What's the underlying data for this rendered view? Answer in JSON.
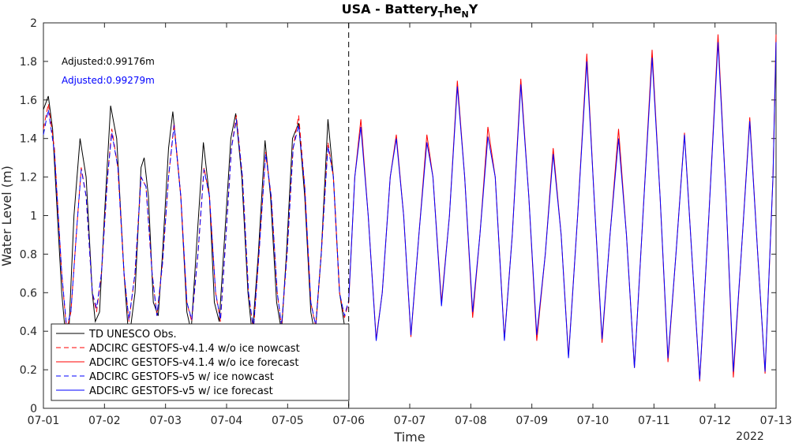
{
  "chart_data": {
    "type": "line",
    "title": "USA - Battery",
    "title_sub": "T",
    "title_mid": "he",
    "title_sub2": "N",
    "title_end": "Y",
    "xlabel": "Time",
    "ylabel": "Water Level (m)",
    "year_label": "2022",
    "ylim": [
      0,
      2
    ],
    "xlim": [
      0,
      12
    ],
    "x_ticks": [
      "07-01",
      "07-02",
      "07-03",
      "07-04",
      "07-05",
      "07-06",
      "07-07",
      "07-08",
      "07-09",
      "07-10",
      "07-11",
      "07-12",
      "07-13"
    ],
    "y_ticks": [
      "0",
      "0.2",
      "0.4",
      "0.6",
      "0.8",
      "1",
      "1.2",
      "1.4",
      "1.6",
      "1.8",
      "2"
    ],
    "nowcast_end": 5,
    "annotations": [
      {
        "text": "Adjusted:0.99176m",
        "color": "#000000"
      },
      {
        "text": "Adjusted:0.99279m",
        "color": "#0000ff"
      }
    ],
    "legend_position": "bottom-left",
    "series": [
      {
        "name": "TD UNESCO Obs.",
        "color": "#000000",
        "style": "solid",
        "points": [
          [
            0,
            1.55
          ],
          [
            0.08,
            1.62
          ],
          [
            0.15,
            1.45
          ],
          [
            0.3,
            0.6
          ],
          [
            0.37,
            0.35
          ],
          [
            0.42,
            0.42
          ],
          [
            0.5,
            1.0
          ],
          [
            0.6,
            1.4
          ],
          [
            0.7,
            1.2
          ],
          [
            0.8,
            0.6
          ],
          [
            0.85,
            0.45
          ],
          [
            0.92,
            0.5
          ],
          [
            1.0,
            1.0
          ],
          [
            1.1,
            1.57
          ],
          [
            1.2,
            1.4
          ],
          [
            1.32,
            0.7
          ],
          [
            1.4,
            0.35
          ],
          [
            1.5,
            0.6
          ],
          [
            1.6,
            1.25
          ],
          [
            1.65,
            1.3
          ],
          [
            1.72,
            1.1
          ],
          [
            1.8,
            0.55
          ],
          [
            1.88,
            0.48
          ],
          [
            1.95,
            0.8
          ],
          [
            2.05,
            1.35
          ],
          [
            2.12,
            1.54
          ],
          [
            2.25,
            1.1
          ],
          [
            2.35,
            0.5
          ],
          [
            2.42,
            0.4
          ],
          [
            2.52,
            0.9
          ],
          [
            2.62,
            1.38
          ],
          [
            2.72,
            1.1
          ],
          [
            2.8,
            0.55
          ],
          [
            2.88,
            0.45
          ],
          [
            2.97,
            0.9
          ],
          [
            3.07,
            1.4
          ],
          [
            3.15,
            1.53
          ],
          [
            3.25,
            1.2
          ],
          [
            3.35,
            0.6
          ],
          [
            3.42,
            0.38
          ],
          [
            3.52,
            0.8
          ],
          [
            3.63,
            1.39
          ],
          [
            3.72,
            1.1
          ],
          [
            3.82,
            0.55
          ],
          [
            3.9,
            0.4
          ],
          [
            3.98,
            0.8
          ],
          [
            4.08,
            1.4
          ],
          [
            4.18,
            1.48
          ],
          [
            4.28,
            1.1
          ],
          [
            4.38,
            0.5
          ],
          [
            4.45,
            0.38
          ],
          [
            4.55,
            0.8
          ],
          [
            4.66,
            1.5
          ],
          [
            4.75,
            1.2
          ],
          [
            4.85,
            0.6
          ],
          [
            4.93,
            0.43
          ],
          [
            5.0,
            0.44
          ]
        ]
      },
      {
        "name": "ADCIRC GESTOFS-v4.1.4 w/o ice nowcast",
        "color": "#ff0000",
        "style": "dashed",
        "points": [
          [
            0,
            1.45
          ],
          [
            0.08,
            1.58
          ],
          [
            0.18,
            1.35
          ],
          [
            0.3,
            0.7
          ],
          [
            0.38,
            0.4
          ],
          [
            0.45,
            0.5
          ],
          [
            0.55,
            0.95
          ],
          [
            0.62,
            1.25
          ],
          [
            0.7,
            1.1
          ],
          [
            0.8,
            0.6
          ],
          [
            0.87,
            0.5
          ],
          [
            0.95,
            0.7
          ],
          [
            1.05,
            1.2
          ],
          [
            1.12,
            1.45
          ],
          [
            1.22,
            1.25
          ],
          [
            1.32,
            0.7
          ],
          [
            1.4,
            0.45
          ],
          [
            1.5,
            0.7
          ],
          [
            1.6,
            1.2
          ],
          [
            1.68,
            1.15
          ],
          [
            1.78,
            0.7
          ],
          [
            1.86,
            0.48
          ],
          [
            1.95,
            0.75
          ],
          [
            2.05,
            1.2
          ],
          [
            2.14,
            1.48
          ],
          [
            2.25,
            1.1
          ],
          [
            2.35,
            0.55
          ],
          [
            2.43,
            0.45
          ],
          [
            2.53,
            0.8
          ],
          [
            2.63,
            1.25
          ],
          [
            2.72,
            1.1
          ],
          [
            2.82,
            0.6
          ],
          [
            2.9,
            0.45
          ],
          [
            2.98,
            0.85
          ],
          [
            3.08,
            1.35
          ],
          [
            3.16,
            1.52
          ],
          [
            3.26,
            1.2
          ],
          [
            3.36,
            0.6
          ],
          [
            3.44,
            0.4
          ],
          [
            3.53,
            0.8
          ],
          [
            3.64,
            1.33
          ],
          [
            3.73,
            1.1
          ],
          [
            3.83,
            0.6
          ],
          [
            3.9,
            0.42
          ],
          [
            3.99,
            0.8
          ],
          [
            4.09,
            1.35
          ],
          [
            4.18,
            1.52
          ],
          [
            4.28,
            1.15
          ],
          [
            4.38,
            0.55
          ],
          [
            4.46,
            0.42
          ],
          [
            4.55,
            0.8
          ],
          [
            4.66,
            1.38
          ],
          [
            4.75,
            1.2
          ],
          [
            4.85,
            0.6
          ],
          [
            4.93,
            0.47
          ],
          [
            5.0,
            0.55
          ]
        ]
      },
      {
        "name": "ADCIRC GESTOFS-v4.1.4 w/o ice forecast",
        "color": "#ff0000",
        "style": "solid",
        "points": [
          [
            5.0,
            0.55
          ],
          [
            5.1,
            1.2
          ],
          [
            5.2,
            1.5
          ],
          [
            5.32,
            1.0
          ],
          [
            5.45,
            0.36
          ],
          [
            5.55,
            0.6
          ],
          [
            5.68,
            1.2
          ],
          [
            5.78,
            1.42
          ],
          [
            5.9,
            1.0
          ],
          [
            6.02,
            0.37
          ],
          [
            6.15,
            0.9
          ],
          [
            6.28,
            1.42
          ],
          [
            6.38,
            1.2
          ],
          [
            6.52,
            0.55
          ],
          [
            6.65,
            1.0
          ],
          [
            6.78,
            1.7
          ],
          [
            6.9,
            1.2
          ],
          [
            7.03,
            0.47
          ],
          [
            7.15,
            0.9
          ],
          [
            7.28,
            1.46
          ],
          [
            7.4,
            1.2
          ],
          [
            7.55,
            0.36
          ],
          [
            7.68,
            0.9
          ],
          [
            7.82,
            1.71
          ],
          [
            7.95,
            1.1
          ],
          [
            8.08,
            0.35
          ],
          [
            8.22,
            0.8
          ],
          [
            8.35,
            1.35
          ],
          [
            8.48,
            0.9
          ],
          [
            8.6,
            0.27
          ],
          [
            8.75,
            1.0
          ],
          [
            8.9,
            1.84
          ],
          [
            9.02,
            1.1
          ],
          [
            9.15,
            0.34
          ],
          [
            9.28,
            0.9
          ],
          [
            9.42,
            1.45
          ],
          [
            9.55,
            0.9
          ],
          [
            9.68,
            0.21
          ],
          [
            9.82,
            1.0
          ],
          [
            9.97,
            1.86
          ],
          [
            10.1,
            1.1
          ],
          [
            10.23,
            0.24
          ],
          [
            10.36,
            0.8
          ],
          [
            10.5,
            1.43
          ],
          [
            10.62,
            0.8
          ],
          [
            10.75,
            0.14
          ],
          [
            10.9,
            1.0
          ],
          [
            11.05,
            1.94
          ],
          [
            11.18,
            1.1
          ],
          [
            11.3,
            0.16
          ],
          [
            11.43,
            0.8
          ],
          [
            11.57,
            1.51
          ],
          [
            11.7,
            0.8
          ],
          [
            11.82,
            0.18
          ],
          [
            11.95,
            1.2
          ],
          [
            12.0,
            1.94
          ]
        ]
      },
      {
        "name": "ADCIRC GESTOFS-v5 w/ ice nowcast",
        "color": "#0000ff",
        "style": "dashed",
        "points": [
          [
            0,
            1.42
          ],
          [
            0.08,
            1.55
          ],
          [
            0.18,
            1.33
          ],
          [
            0.3,
            0.7
          ],
          [
            0.38,
            0.42
          ],
          [
            0.45,
            0.5
          ],
          [
            0.55,
            0.95
          ],
          [
            0.62,
            1.24
          ],
          [
            0.7,
            1.1
          ],
          [
            0.8,
            0.6
          ],
          [
            0.87,
            0.52
          ],
          [
            0.95,
            0.7
          ],
          [
            1.05,
            1.2
          ],
          [
            1.12,
            1.43
          ],
          [
            1.22,
            1.25
          ],
          [
            1.32,
            0.7
          ],
          [
            1.4,
            0.46
          ],
          [
            1.5,
            0.7
          ],
          [
            1.6,
            1.2
          ],
          [
            1.68,
            1.15
          ],
          [
            1.78,
            0.7
          ],
          [
            1.86,
            0.48
          ],
          [
            1.95,
            0.75
          ],
          [
            2.05,
            1.2
          ],
          [
            2.14,
            1.47
          ],
          [
            2.25,
            1.1
          ],
          [
            2.35,
            0.55
          ],
          [
            2.43,
            0.46
          ],
          [
            2.53,
            0.8
          ],
          [
            2.63,
            1.24
          ],
          [
            2.72,
            1.1
          ],
          [
            2.82,
            0.6
          ],
          [
            2.9,
            0.46
          ],
          [
            2.98,
            0.85
          ],
          [
            3.08,
            1.35
          ],
          [
            3.16,
            1.5
          ],
          [
            3.26,
            1.2
          ],
          [
            3.36,
            0.6
          ],
          [
            3.44,
            0.41
          ],
          [
            3.53,
            0.8
          ],
          [
            3.64,
            1.32
          ],
          [
            3.73,
            1.1
          ],
          [
            3.83,
            0.6
          ],
          [
            3.9,
            0.43
          ],
          [
            3.99,
            0.8
          ],
          [
            4.09,
            1.35
          ],
          [
            4.18,
            1.47
          ],
          [
            4.28,
            1.15
          ],
          [
            4.38,
            0.55
          ],
          [
            4.46,
            0.43
          ],
          [
            4.55,
            0.8
          ],
          [
            4.66,
            1.36
          ],
          [
            4.75,
            1.2
          ],
          [
            4.85,
            0.6
          ],
          [
            4.93,
            0.48
          ],
          [
            5.0,
            0.56
          ]
        ]
      },
      {
        "name": "ADCIRC GESTOFS-v5 w/ ice forecast",
        "color": "#0000ff",
        "style": "solid",
        "points": [
          [
            5.0,
            0.56
          ],
          [
            5.1,
            1.2
          ],
          [
            5.2,
            1.46
          ],
          [
            5.32,
            1.0
          ],
          [
            5.45,
            0.35
          ],
          [
            5.55,
            0.6
          ],
          [
            5.68,
            1.2
          ],
          [
            5.78,
            1.4
          ],
          [
            5.9,
            1.0
          ],
          [
            6.02,
            0.38
          ],
          [
            6.15,
            0.9
          ],
          [
            6.28,
            1.38
          ],
          [
            6.38,
            1.2
          ],
          [
            6.52,
            0.53
          ],
          [
            6.65,
            1.0
          ],
          [
            6.78,
            1.67
          ],
          [
            6.9,
            1.2
          ],
          [
            7.03,
            0.5
          ],
          [
            7.15,
            0.9
          ],
          [
            7.28,
            1.41
          ],
          [
            7.4,
            1.2
          ],
          [
            7.55,
            0.35
          ],
          [
            7.68,
            0.9
          ],
          [
            7.82,
            1.68
          ],
          [
            7.95,
            1.1
          ],
          [
            8.08,
            0.38
          ],
          [
            8.22,
            0.8
          ],
          [
            8.35,
            1.32
          ],
          [
            8.48,
            0.9
          ],
          [
            8.6,
            0.26
          ],
          [
            8.75,
            1.0
          ],
          [
            8.9,
            1.8
          ],
          [
            9.02,
            1.1
          ],
          [
            9.15,
            0.36
          ],
          [
            9.28,
            0.9
          ],
          [
            9.42,
            1.4
          ],
          [
            9.55,
            0.9
          ],
          [
            9.68,
            0.21
          ],
          [
            9.82,
            1.0
          ],
          [
            9.97,
            1.82
          ],
          [
            10.1,
            1.1
          ],
          [
            10.23,
            0.26
          ],
          [
            10.36,
            0.8
          ],
          [
            10.5,
            1.42
          ],
          [
            10.62,
            0.8
          ],
          [
            10.75,
            0.15
          ],
          [
            10.9,
            1.0
          ],
          [
            11.05,
            1.9
          ],
          [
            11.18,
            1.1
          ],
          [
            11.3,
            0.19
          ],
          [
            11.43,
            0.8
          ],
          [
            11.57,
            1.49
          ],
          [
            11.7,
            0.8
          ],
          [
            11.82,
            0.19
          ],
          [
            11.95,
            1.2
          ],
          [
            12.0,
            1.9
          ]
        ]
      }
    ]
  }
}
